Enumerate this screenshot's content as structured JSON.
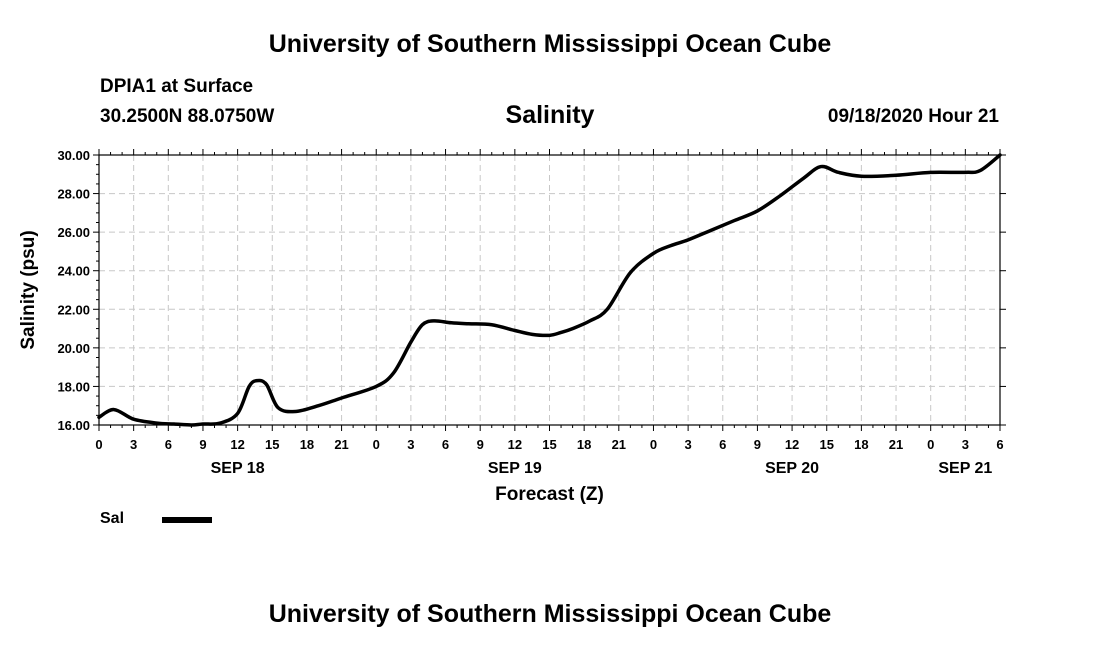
{
  "header": {
    "title_top": "University of Southern Mississippi Ocean Cube",
    "title_bottom": "University of Southern Mississippi Ocean Cube",
    "station": "DPIA1 at Surface",
    "coords": "30.2500N 88.0750W",
    "variable": "Salinity",
    "timestamp": "09/18/2020 Hour 21"
  },
  "legend": {
    "label": "Sal",
    "color": "#000000"
  },
  "chart_data": {
    "type": "line",
    "title": "Salinity",
    "xlabel": "Forecast (Z)",
    "ylabel": "Salinity (psu)",
    "ylim": [
      16,
      30
    ],
    "xlim_hours": [
      0,
      78
    ],
    "x_unit": "hours since SEP 18 00Z",
    "yticks": [
      "16.00",
      "18.00",
      "20.00",
      "22.00",
      "24.00",
      "26.00",
      "28.00",
      "30.00"
    ],
    "xticks": [
      "0",
      "3",
      "6",
      "9",
      "12",
      "15",
      "18",
      "21",
      "0",
      "3",
      "6",
      "9",
      "12",
      "15",
      "18",
      "21",
      "0",
      "3",
      "6",
      "9",
      "12",
      "15",
      "18",
      "21",
      "0",
      "3",
      "6"
    ],
    "date_labels": [
      {
        "label": "SEP 18",
        "hour": 12
      },
      {
        "label": "SEP 19",
        "hour": 36
      },
      {
        "label": "SEP 20",
        "hour": 60
      },
      {
        "label": "SEP 21",
        "hour": 75
      }
    ],
    "grid": true,
    "series": [
      {
        "name": "Sal",
        "x": [
          0,
          1.3,
          3,
          5,
          6.5,
          8,
          9,
          10.5,
          12,
          13,
          13.7,
          14.5,
          15.5,
          17,
          19,
          21,
          24,
          25.5,
          27,
          28,
          29,
          30.5,
          32,
          34,
          36,
          37.5,
          39,
          40,
          41,
          42.5,
          44,
          46,
          48,
          49.5,
          51,
          53,
          55,
          57,
          59,
          61,
          62.5,
          64,
          66,
          69,
          72,
          75,
          76.3,
          78
        ],
        "values": [
          16.4,
          16.8,
          16.3,
          16.1,
          16.05,
          16.0,
          16.05,
          16.1,
          16.6,
          18.0,
          18.3,
          18.1,
          16.9,
          16.7,
          17.0,
          17.4,
          18.0,
          18.7,
          20.3,
          21.2,
          21.4,
          21.3,
          21.25,
          21.2,
          20.9,
          20.7,
          20.65,
          20.8,
          21.0,
          21.4,
          22.0,
          23.9,
          24.9,
          25.3,
          25.6,
          26.1,
          26.6,
          27.1,
          27.9,
          28.8,
          29.4,
          29.1,
          28.9,
          28.95,
          29.1,
          29.1,
          29.2,
          30.0
        ]
      }
    ]
  }
}
